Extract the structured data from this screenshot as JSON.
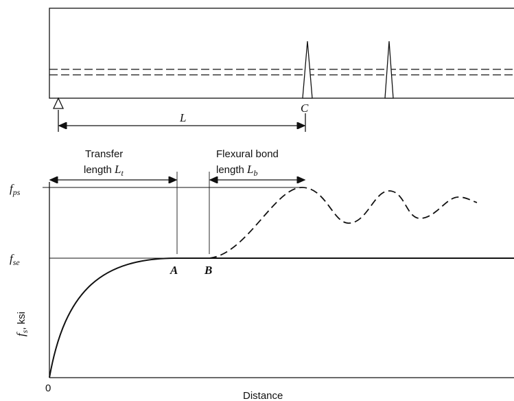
{
  "beam": {
    "span_label": "L",
    "section_label": "C"
  },
  "graph": {
    "transfer": {
      "line1": "Transfer",
      "line2": "length",
      "symbol": "L",
      "sub": "t"
    },
    "flexural": {
      "line1": "Flexural bond",
      "line2": "length",
      "symbol": "L",
      "sub": "b"
    },
    "fps": {
      "symbol": "f",
      "sub": "ps"
    },
    "fse": {
      "symbol": "f",
      "sub": "se"
    },
    "y_axis": {
      "symbol": "f",
      "sub": "s",
      "unit": ", ksi"
    },
    "point_a": "A",
    "point_b": "B",
    "origin": "0",
    "x_axis": "Distance"
  }
}
